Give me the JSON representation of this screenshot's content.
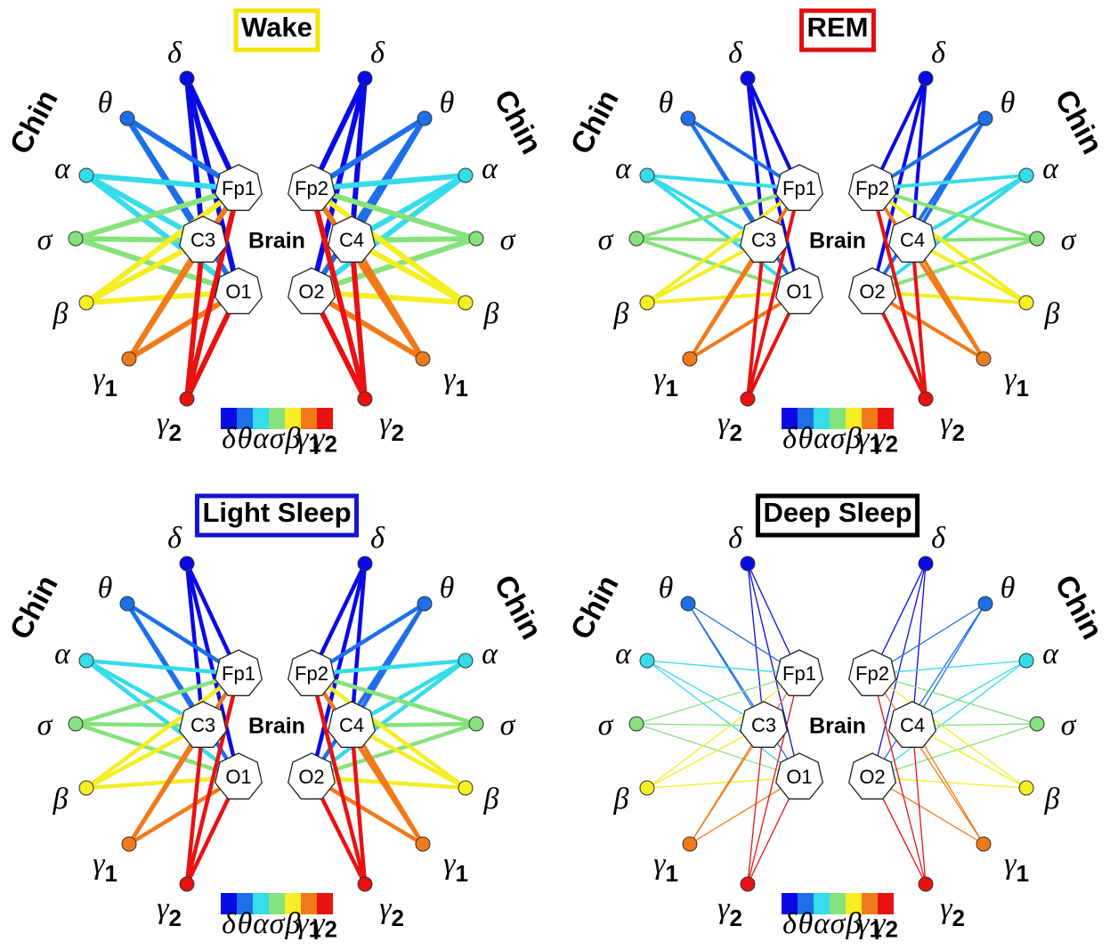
{
  "panels": [
    {
      "title": "Wake",
      "border_color": "#f2e600",
      "line_width": 6
    },
    {
      "title": "REM",
      "border_color": "#e01010",
      "line_width": 4
    },
    {
      "title": "Light Sleep",
      "border_color": "#1414d2",
      "line_width": 4.5
    },
    {
      "title": "Deep Sleep",
      "border_color": "#000000",
      "line_width": 1.3
    }
  ],
  "bands": [
    {
      "symbol": "δ",
      "color": "#0a0ae6"
    },
    {
      "symbol": "θ",
      "color": "#1e6fe8"
    },
    {
      "symbol": "α",
      "color": "#35dcea"
    },
    {
      "symbol": "σ",
      "color": "#86e27c"
    },
    {
      "symbol": "β",
      "color": "#f4ee22"
    },
    {
      "symbol": "γ",
      "subscript": "1",
      "color": "#f07a1a"
    },
    {
      "symbol": "γ",
      "subscript": "2",
      "color": "#e81212"
    }
  ],
  "chin_label": "Chin",
  "brain_label": "Brain",
  "channels": {
    "left": [
      "Fp1",
      "C3",
      "O1"
    ],
    "right": [
      "Fp2",
      "C4",
      "O2"
    ]
  }
}
